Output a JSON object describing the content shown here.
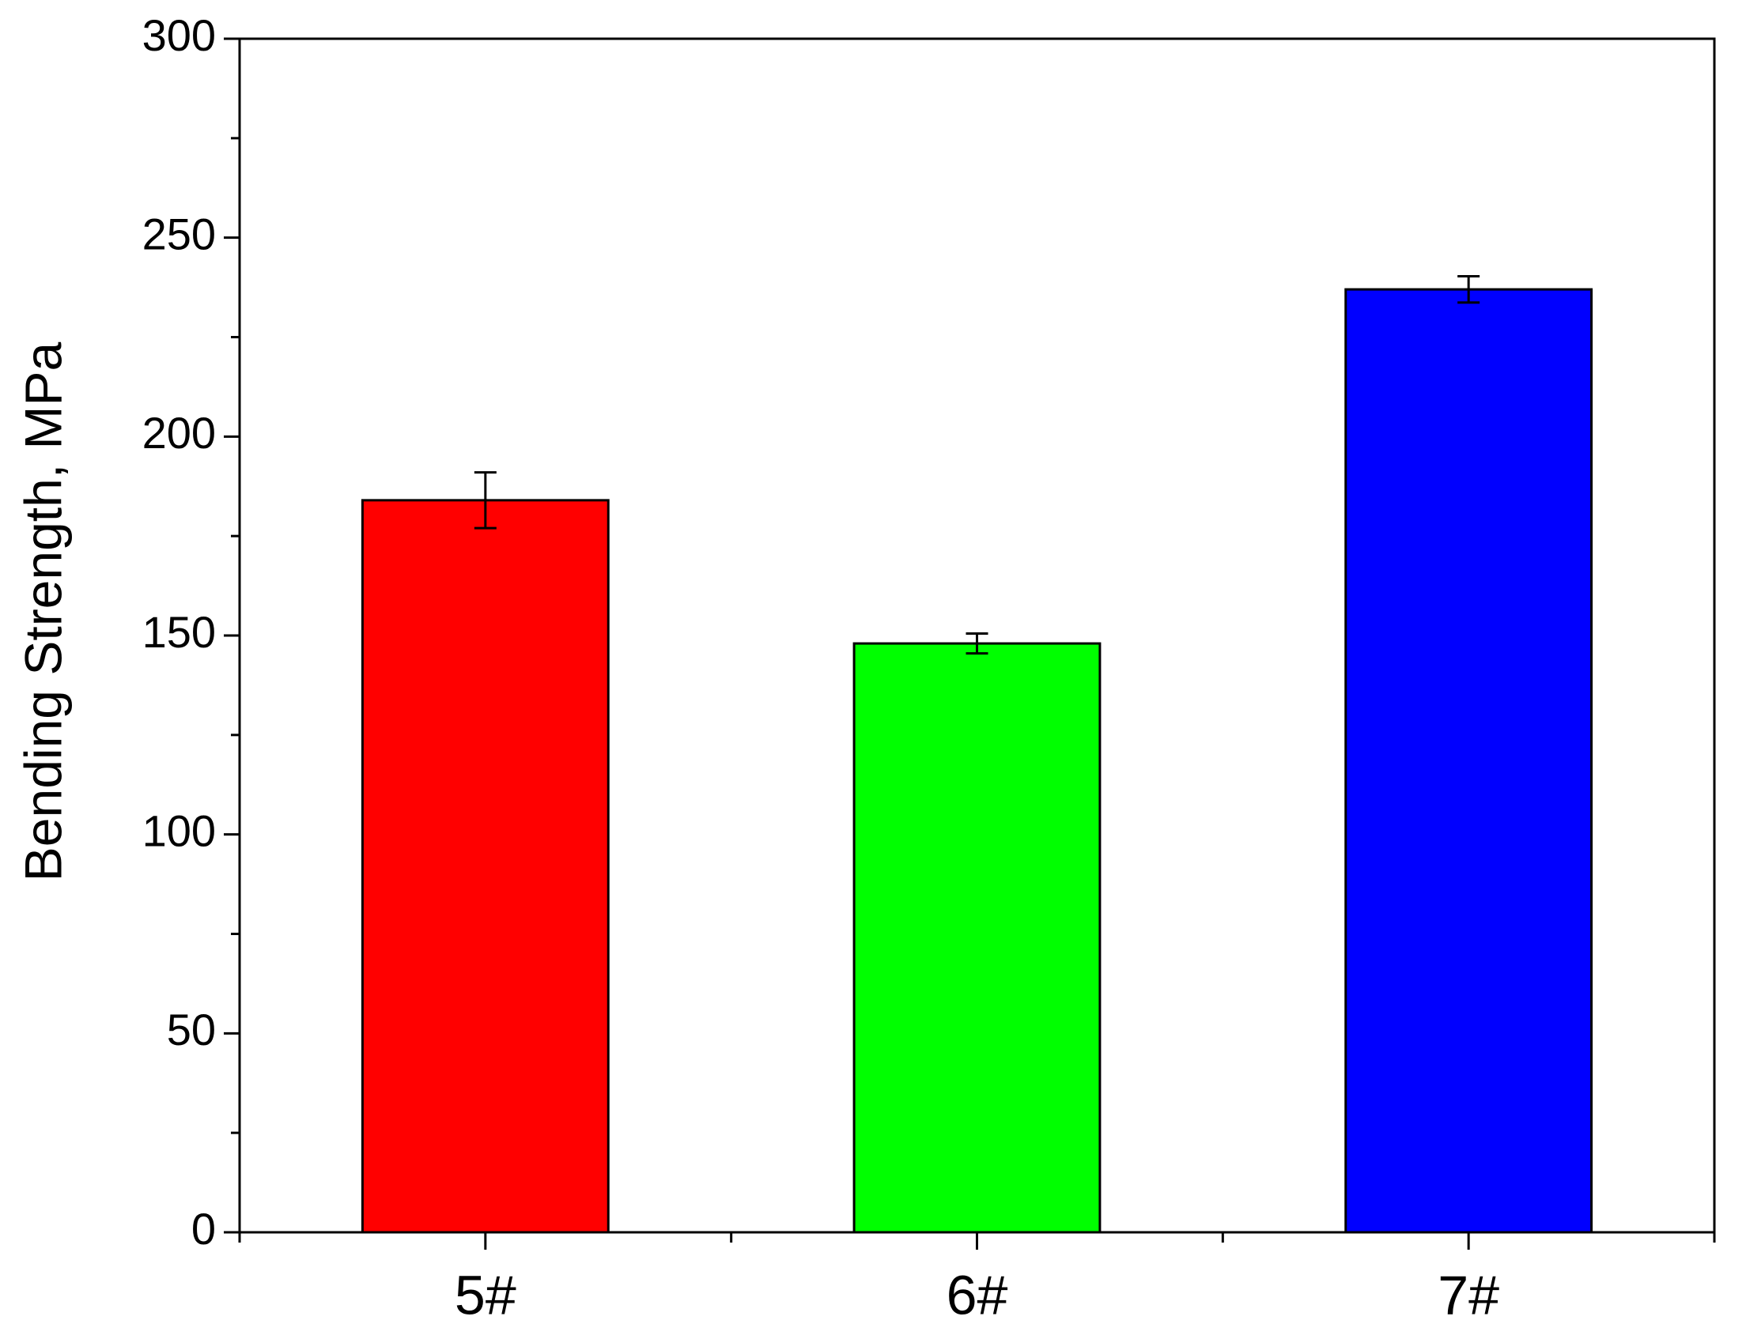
{
  "chart_data": {
    "type": "bar",
    "y_label": "Bending Strength, MPa",
    "categories": [
      "5#",
      "6#",
      "7#"
    ],
    "values": [
      184,
      148,
      237
    ],
    "errors": [
      7,
      2.5,
      3.3
    ],
    "colors": [
      "#ff0000",
      "#00ff00",
      "#0000ff"
    ],
    "ylim": [
      0,
      300
    ],
    "yticks": [
      0,
      50,
      100,
      150,
      200,
      250,
      300
    ],
    "yticks_minor": [
      25,
      75,
      125,
      175,
      225,
      275
    ],
    "grid": false
  }
}
